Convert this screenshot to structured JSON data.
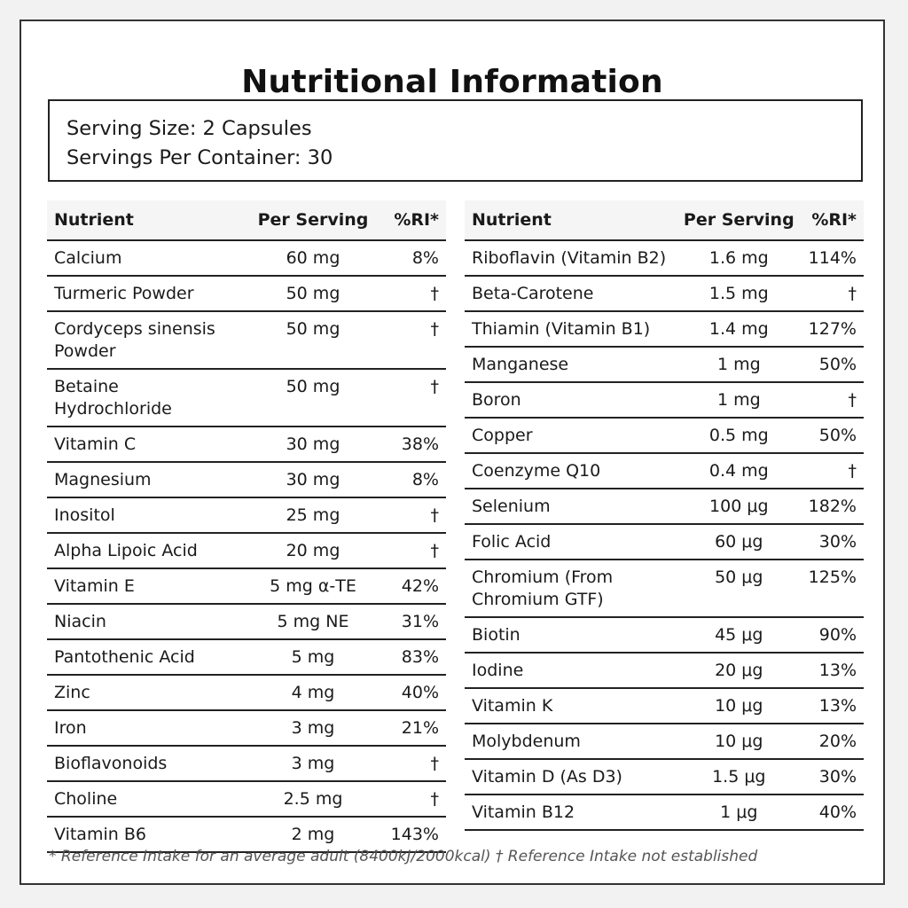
{
  "title": "Nutritional Information",
  "serving": {
    "size": "Serving Size: 2 Capsules",
    "per_container": "Servings Per Container: 30"
  },
  "headers": {
    "nutrient": "Nutrient",
    "per_serving": "Per Serving",
    "ri": "%RI*"
  },
  "left_rows": [
    {
      "nutrient": "Calcium",
      "amount": "60 mg",
      "ri": "8%"
    },
    {
      "nutrient": "Turmeric Powder",
      "amount": "50 mg",
      "ri": "†"
    },
    {
      "nutrient": "Cordyceps sinensis Powder",
      "amount": "50 mg",
      "ri": "†"
    },
    {
      "nutrient": "Betaine Hydrochloride",
      "amount": "50 mg",
      "ri": "†"
    },
    {
      "nutrient": "Vitamin C",
      "amount": "30 mg",
      "ri": "38%"
    },
    {
      "nutrient": "Magnesium",
      "amount": "30 mg",
      "ri": "8%"
    },
    {
      "nutrient": "Inositol",
      "amount": "25 mg",
      "ri": "†"
    },
    {
      "nutrient": "Alpha Lipoic Acid",
      "amount": "20 mg",
      "ri": "†"
    },
    {
      "nutrient": "Vitamin E",
      "amount": "5 mg α-TE",
      "ri": "42%"
    },
    {
      "nutrient": "Niacin",
      "amount": "5 mg NE",
      "ri": "31%"
    },
    {
      "nutrient": "Pantothenic Acid",
      "amount": "5 mg",
      "ri": "83%"
    },
    {
      "nutrient": "Zinc",
      "amount": "4 mg",
      "ri": "40%"
    },
    {
      "nutrient": "Iron",
      "amount": "3 mg",
      "ri": "21%"
    },
    {
      "nutrient": "Bioflavonoids",
      "amount": "3 mg",
      "ri": "†"
    },
    {
      "nutrient": "Choline",
      "amount": "2.5 mg",
      "ri": "†"
    },
    {
      "nutrient": "Vitamin B6",
      "amount": "2 mg",
      "ri": "143%"
    }
  ],
  "right_rows": [
    {
      "nutrient": "Riboflavin (Vitamin B2)",
      "amount": "1.6 mg",
      "ri": "114%"
    },
    {
      "nutrient": "Beta-Carotene",
      "amount": "1.5 mg",
      "ri": "†"
    },
    {
      "nutrient": "Thiamin (Vitamin B1)",
      "amount": "1.4 mg",
      "ri": "127%"
    },
    {
      "nutrient": "Manganese",
      "amount": "1 mg",
      "ri": "50%"
    },
    {
      "nutrient": "Boron",
      "amount": "1 mg",
      "ri": "†"
    },
    {
      "nutrient": "Copper",
      "amount": "0.5 mg",
      "ri": "50%"
    },
    {
      "nutrient": "Coenzyme Q10",
      "amount": "0.4 mg",
      "ri": "†"
    },
    {
      "nutrient": "Selenium",
      "amount": "100 μg",
      "ri": "182%"
    },
    {
      "nutrient": "Folic Acid",
      "amount": "60 μg",
      "ri": "30%"
    },
    {
      "nutrient": "Chromium (From Chromium GTF)",
      "amount": "50 μg",
      "ri": "125%"
    },
    {
      "nutrient": "Biotin",
      "amount": "45 μg",
      "ri": "90%"
    },
    {
      "nutrient": "Iodine",
      "amount": "20 μg",
      "ri": "13%"
    },
    {
      "nutrient": "Vitamin K",
      "amount": "10 μg",
      "ri": "13%"
    },
    {
      "nutrient": "Molybdenum",
      "amount": "10 μg",
      "ri": "20%"
    },
    {
      "nutrient": "Vitamin D (As D3)",
      "amount": "1.5 μg",
      "ri": "30%"
    },
    {
      "nutrient": "Vitamin B12",
      "amount": "1 μg",
      "ri": "40%"
    }
  ],
  "footnote": "* Reference Intake for an average adult (8400kJ/2000kcal) † Reference Intake not established"
}
